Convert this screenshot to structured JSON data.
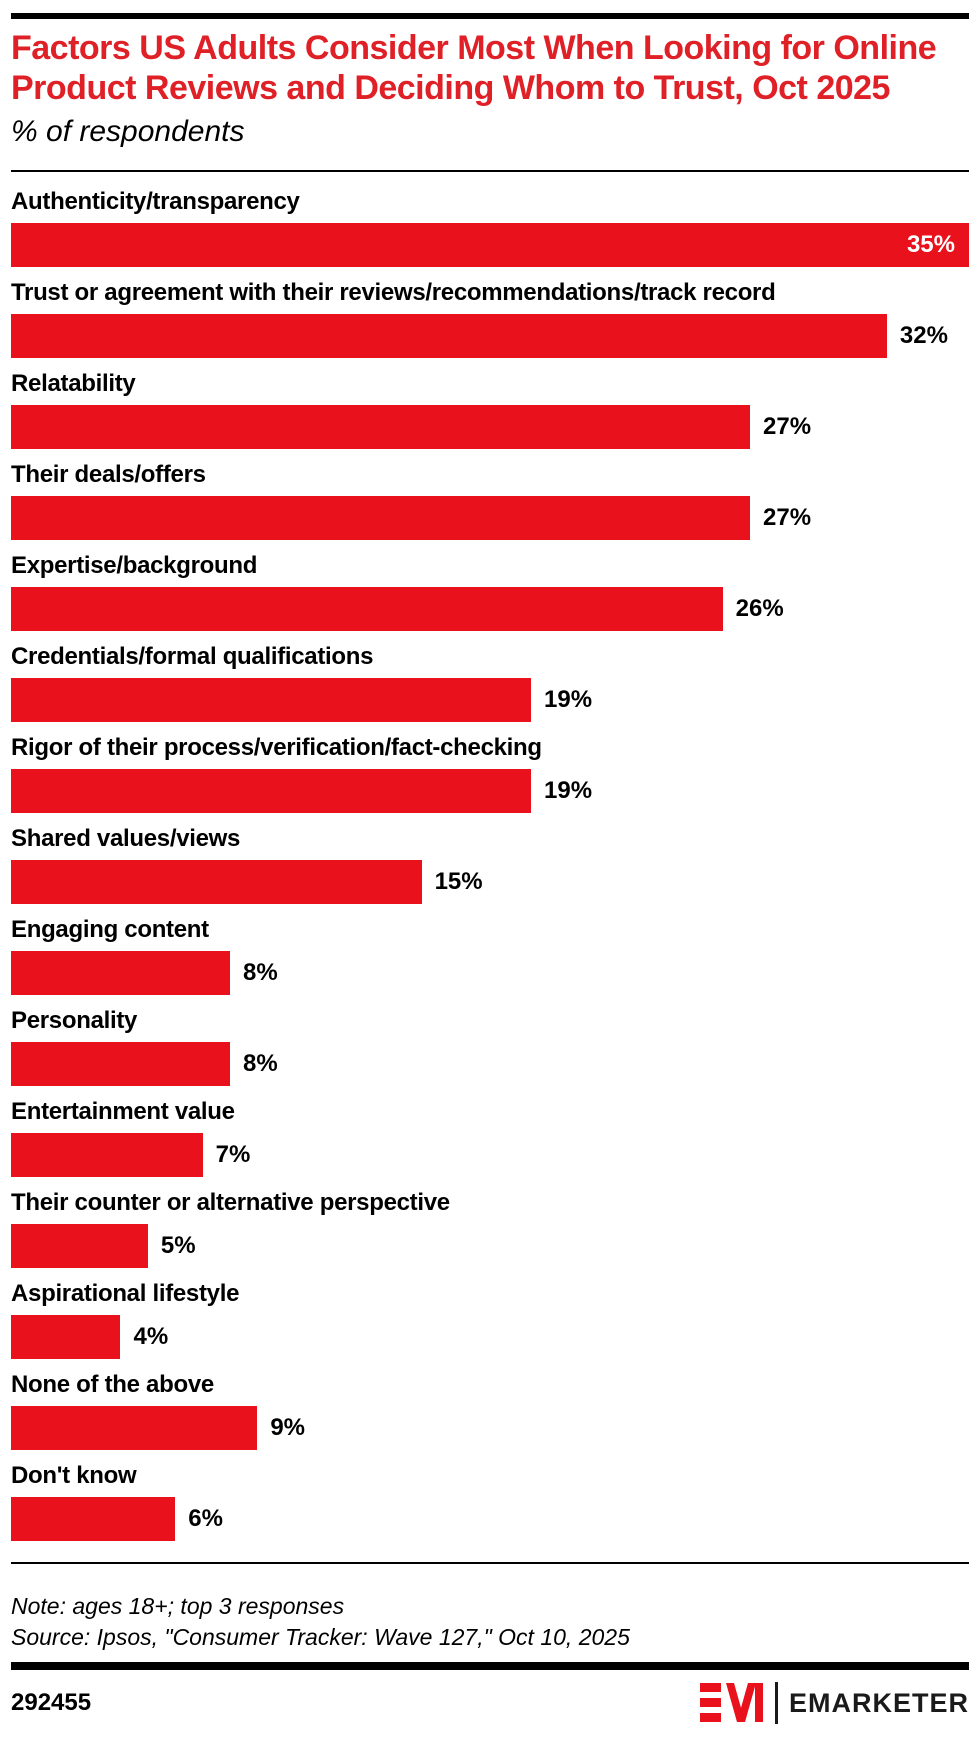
{
  "header": {
    "title": "Factors US Adults Consider Most When Looking for Online Product Reviews and Deciding Whom to Trust, Oct 2025",
    "subtitle": "% of respondents"
  },
  "colors": {
    "title_red": "#e02027",
    "bar_red": "#e8111c",
    "black": "#000000",
    "inside_value_text": "#ffffff"
  },
  "chart_data": {
    "type": "bar",
    "orientation": "horizontal",
    "title": "Factors US Adults Consider Most When Looking for Online Product Reviews and Deciding Whom to Trust, Oct 2025",
    "subtitle": "% of respondents",
    "unit": "%",
    "xlim": [
      0,
      35
    ],
    "grid": false,
    "legend": false,
    "categories": [
      "Authenticity/transparency",
      "Trust or agreement with their reviews/recommendations/track record",
      "Relatability",
      "Their deals/offers",
      "Expertise/background",
      "Credentials/formal qualifications",
      "Rigor of their process/verification/fact-checking",
      "Shared values/views",
      "Engaging content",
      "Personality",
      "Entertainment value",
      "Their counter or alternative perspective",
      "Aspirational lifestyle",
      "None of the above",
      "Don't know"
    ],
    "values": [
      35,
      32,
      27,
      27,
      26,
      19,
      19,
      15,
      8,
      8,
      7,
      5,
      4,
      9,
      6
    ],
    "value_labels": [
      "35%",
      "32%",
      "27%",
      "27%",
      "26%",
      "19%",
      "19%",
      "15%",
      "8%",
      "8%",
      "7%",
      "5%",
      "4%",
      "9%",
      "6%"
    ],
    "value_inside": [
      true,
      false,
      false,
      false,
      false,
      false,
      false,
      false,
      false,
      false,
      false,
      false,
      false,
      false,
      false
    ]
  },
  "footnotes": {
    "note": "Note: ages 18+; top 3 responses",
    "source": "Source: Ipsos, \"Consumer Tracker: Wave 127,\" Oct 10, 2025"
  },
  "footer": {
    "chart_id": "292455",
    "brand_name": "EMARKETER"
  }
}
